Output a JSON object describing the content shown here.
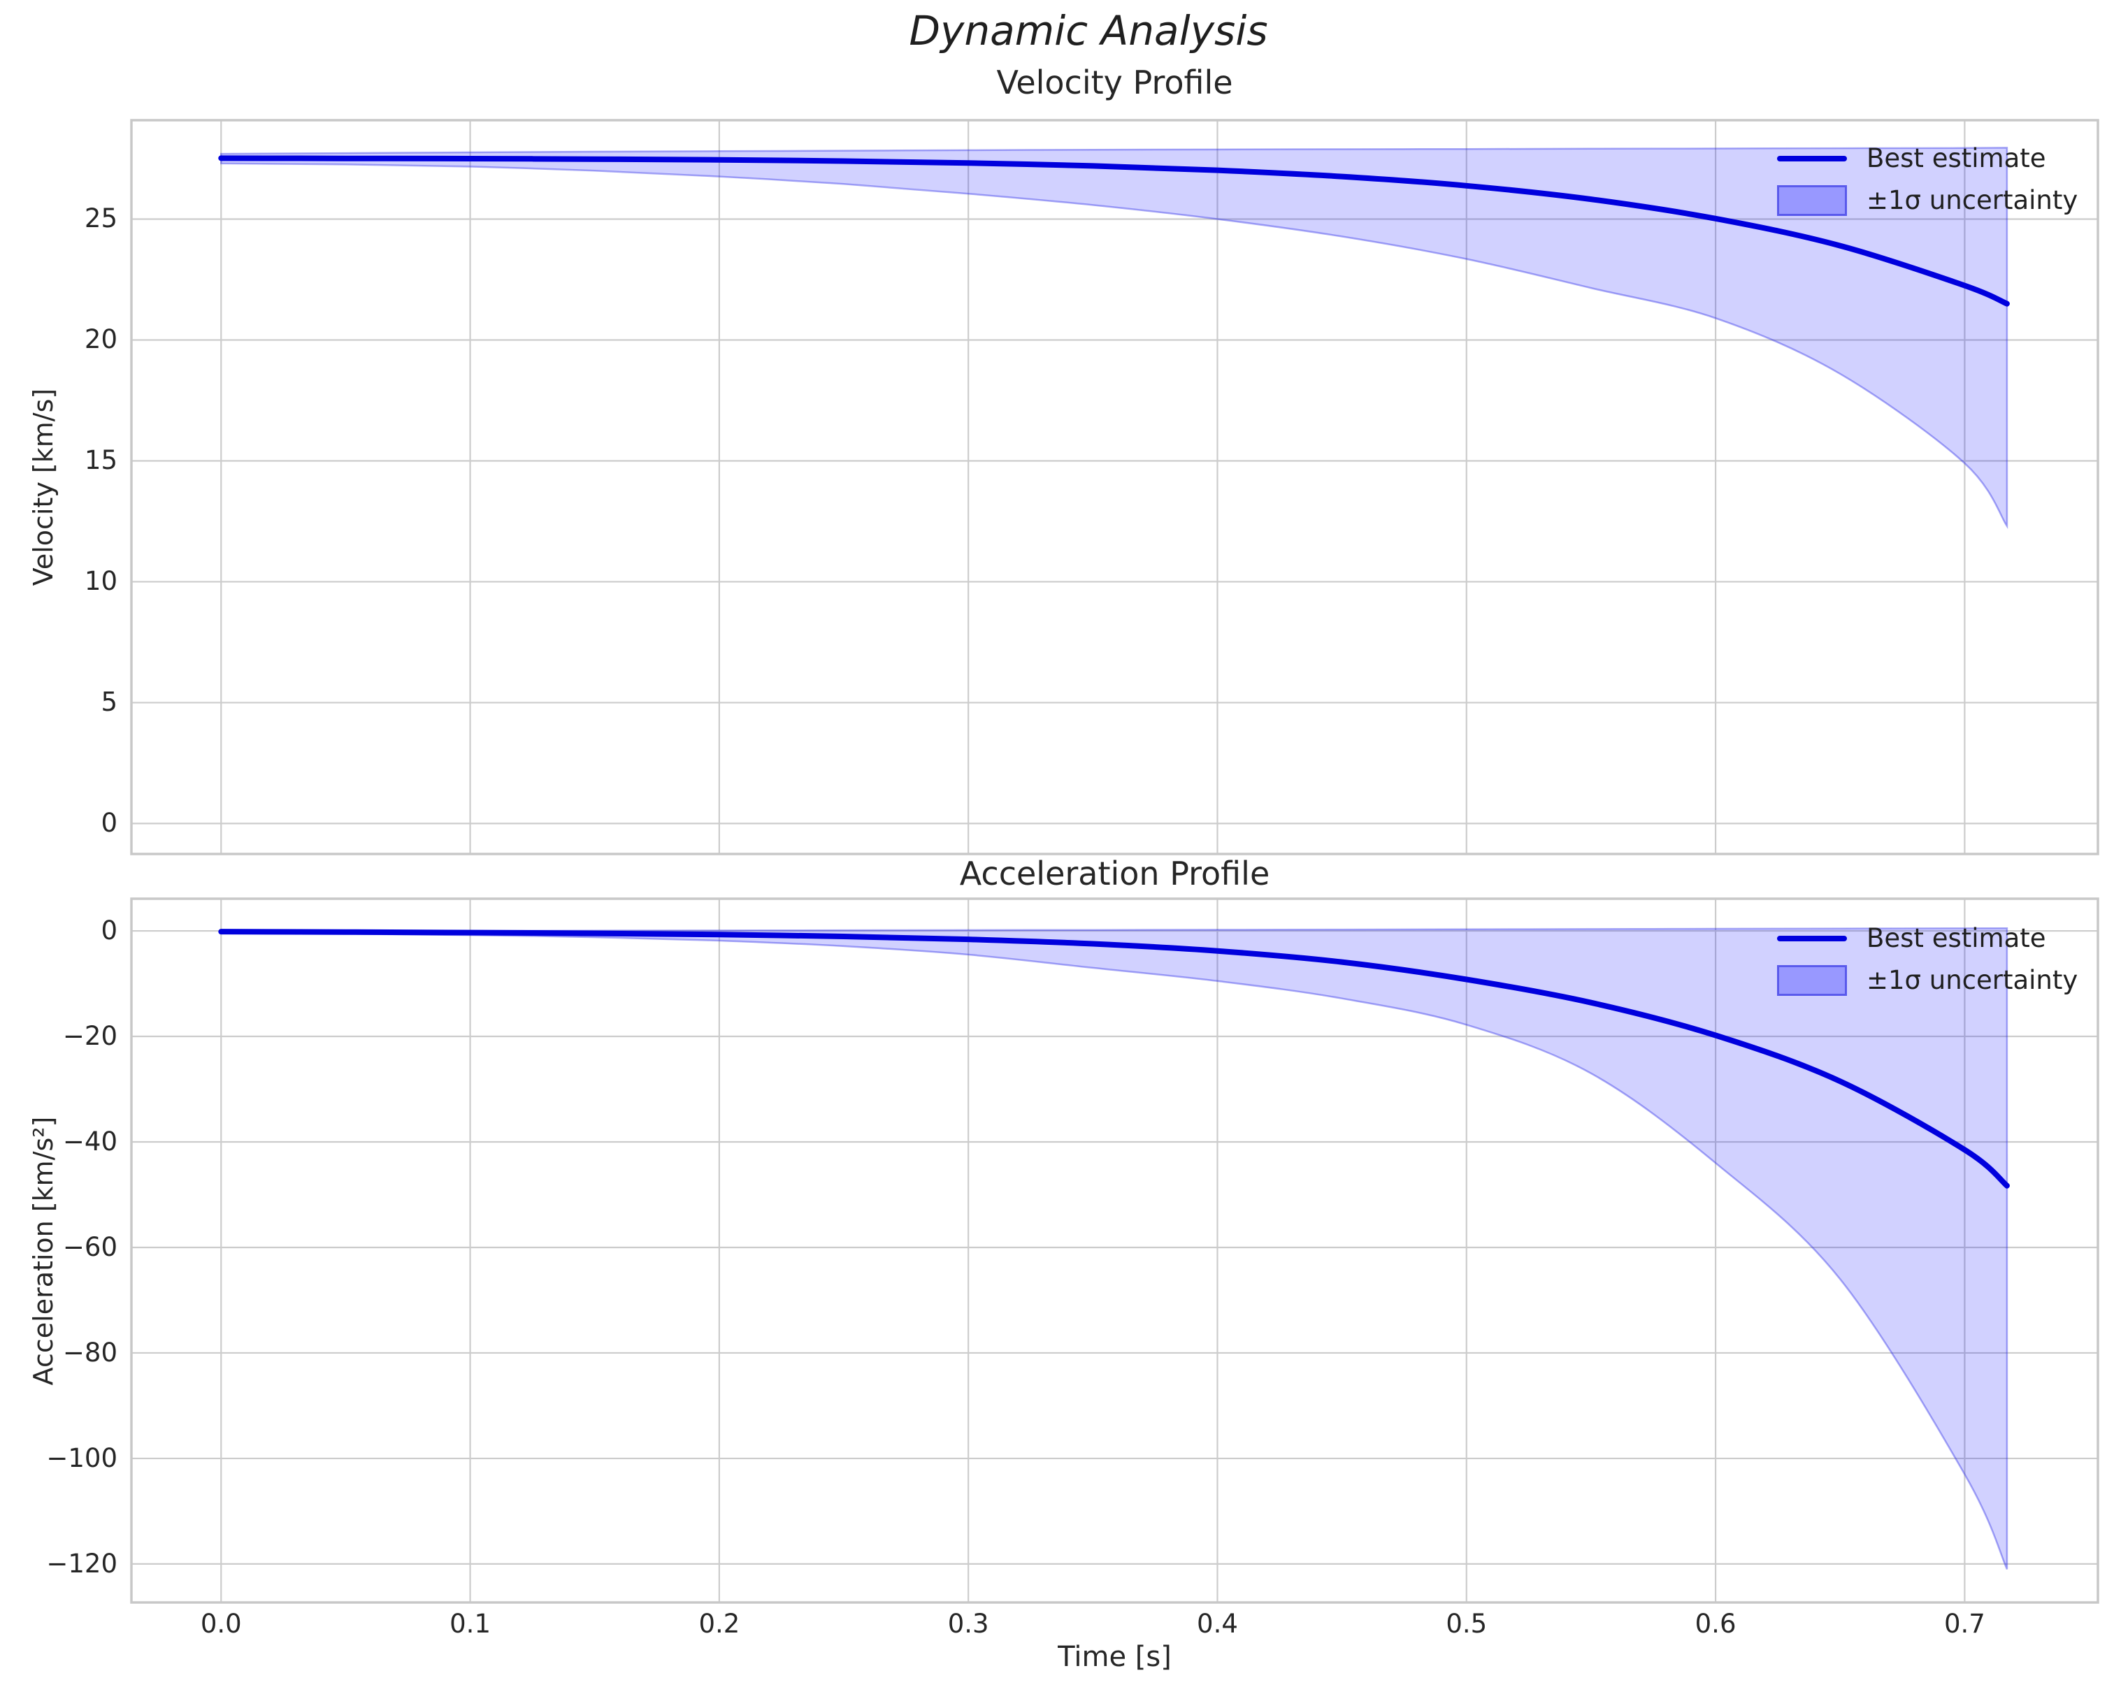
{
  "figure": {
    "suptitle": "Dynamic Analysis",
    "xlabel": "Time [s]",
    "background_color": "#ffffff",
    "line_color": "#0000dd",
    "band_fill_color": "rgba(0,0,255,0.18)",
    "band_edge_color": "rgba(40,40,230,0.40)",
    "legend_patch_fill": "rgba(0,0,255,0.27)",
    "legend_patch_edge": "rgba(40,40,220,0.55)",
    "grid_color": "#cccccc",
    "spine_color": "#c8c8c8",
    "text_color": "#262626"
  },
  "legend": {
    "line_label": "Best estimate",
    "band_label": "±1σ uncertainty",
    "position": "upper right"
  },
  "chart_data": [
    {
      "type": "line",
      "title": "Velocity Profile",
      "ylabel": "Velocity [km/s]",
      "xlabel": "",
      "grid": true,
      "legend_position": "upper right",
      "x": [
        0,
        0.05,
        0.1,
        0.15,
        0.2,
        0.25,
        0.3,
        0.35,
        0.4,
        0.45,
        0.5,
        0.55,
        0.6,
        0.65,
        0.7,
        0.717
      ],
      "series": [
        {
          "name": "Best estimate",
          "values": [
            27.52,
            27.51,
            27.5,
            27.48,
            27.45,
            27.4,
            27.32,
            27.2,
            27.02,
            26.76,
            26.38,
            25.82,
            25.02,
            23.9,
            22.25,
            21.5
          ]
        },
        {
          "name": "+1σ upper bound",
          "values": [
            27.7,
            27.73,
            27.76,
            27.79,
            27.81,
            27.83,
            27.85,
            27.87,
            27.88,
            27.89,
            27.9,
            27.91,
            27.92,
            27.93,
            27.94,
            27.95
          ]
        },
        {
          "name": "-1σ lower bound",
          "values": [
            27.3,
            27.26,
            27.17,
            27.0,
            26.76,
            26.45,
            26.05,
            25.58,
            25.0,
            24.28,
            23.35,
            22.15,
            20.9,
            18.6,
            14.9,
            12.3
          ]
        }
      ],
      "xlim": [
        -0.036,
        0.7535
      ],
      "ylim": [
        -1.26,
        29.09
      ],
      "xticks": {
        "values": [
          0,
          0.1,
          0.2,
          0.3,
          0.4,
          0.5,
          0.6,
          0.7
        ],
        "labels": [
          "0.0",
          "0.1",
          "0.2",
          "0.3",
          "0.4",
          "0.5",
          "0.6",
          "0.7"
        ]
      },
      "yticks": {
        "values": [
          0,
          5,
          10,
          15,
          20,
          25
        ],
        "labels": [
          "0",
          "5",
          "10",
          "15",
          "20",
          "25"
        ]
      },
      "show_xticklabels": false
    },
    {
      "type": "line",
      "title": "Acceleration Profile",
      "ylabel": "Acceleration [km/s²]",
      "xlabel": "Time [s]",
      "grid": true,
      "legend_position": "upper right",
      "x": [
        0,
        0.05,
        0.1,
        0.15,
        0.2,
        0.25,
        0.3,
        0.35,
        0.4,
        0.45,
        0.5,
        0.55,
        0.6,
        0.65,
        0.7,
        0.717
      ],
      "series": [
        {
          "name": "Best estimate",
          "values": [
            -0.15,
            -0.22,
            -0.32,
            -0.47,
            -0.7,
            -1.05,
            -1.6,
            -2.45,
            -3.8,
            -5.9,
            -9.2,
            -13.6,
            -19.8,
            -28.5,
            -41.5,
            -48.3
          ]
        },
        {
          "name": "+1σ upper bound",
          "values": [
            -0.02,
            0.0,
            0.03,
            0.06,
            0.09,
            0.12,
            0.15,
            0.18,
            0.22,
            0.26,
            0.3,
            0.35,
            0.4,
            0.44,
            0.48,
            0.5
          ]
        },
        {
          "name": "-1σ lower bound",
          "values": [
            -0.4,
            -0.55,
            -0.8,
            -1.2,
            -1.85,
            -2.9,
            -4.5,
            -7.0,
            -9.5,
            -12.8,
            -17.8,
            -27.0,
            -44.0,
            -66.0,
            -103.0,
            -121.0
          ]
        }
      ],
      "xlim": [
        -0.036,
        0.7535
      ],
      "ylim": [
        -127.3,
        6.1
      ],
      "xticks": {
        "values": [
          0,
          0.1,
          0.2,
          0.3,
          0.4,
          0.5,
          0.6,
          0.7
        ],
        "labels": [
          "0.0",
          "0.1",
          "0.2",
          "0.3",
          "0.4",
          "0.5",
          "0.6",
          "0.7"
        ]
      },
      "yticks": {
        "values": [
          0,
          -20,
          -40,
          -60,
          -80,
          -100,
          -120
        ],
        "labels": [
          "0",
          "−20",
          "−40",
          "−60",
          "−80",
          "−100",
          "−120"
        ]
      },
      "show_xticklabels": true
    }
  ]
}
